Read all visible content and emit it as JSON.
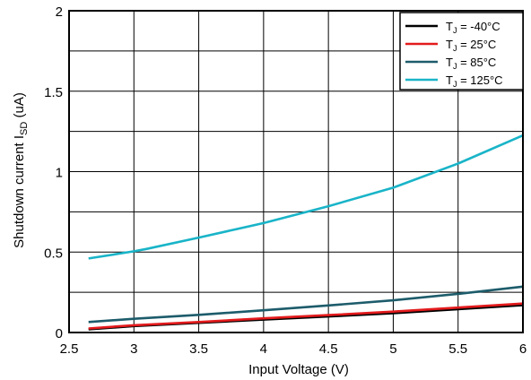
{
  "chart_data": {
    "type": "line",
    "title": "",
    "xlabel": "Input Voltage (V)",
    "ylabel": "Shutdown current I",
    "ylabel_sub": "SD",
    "ylabel_unit": " (uA)",
    "xlim": [
      2.5,
      6
    ],
    "ylim": [
      0,
      2
    ],
    "xticks": [
      2.5,
      3,
      3.5,
      4,
      4.5,
      5,
      5.5,
      6
    ],
    "xtick_labels": [
      "2.5",
      "3",
      "3.5",
      "4",
      "4.5",
      "5",
      "5.5",
      "6"
    ],
    "yticks": [
      0,
      0.5,
      1,
      1.5,
      2
    ],
    "ytick_labels": [
      "0",
      "0.5",
      "1",
      "1.5",
      "2"
    ],
    "minor_grid_y": 0.25,
    "grid": true,
    "legend_position": "top-right",
    "series": [
      {
        "name_prefix": "T",
        "name_sub": "J",
        "name_suffix": " = -40°C",
        "color": "#000000",
        "x": [
          2.65,
          3,
          3.5,
          4,
          4.5,
          5,
          5.5,
          6
        ],
        "y": [
          0.02,
          0.04,
          0.06,
          0.08,
          0.1,
          0.12,
          0.145,
          0.17
        ]
      },
      {
        "name_prefix": "T",
        "name_sub": "J",
        "name_suffix": " =  25°C",
        "color": "#e31a1c",
        "x": [
          2.65,
          3,
          3.5,
          4,
          4.5,
          5,
          5.5,
          6
        ],
        "y": [
          0.025,
          0.045,
          0.065,
          0.088,
          0.108,
          0.13,
          0.155,
          0.18
        ]
      },
      {
        "name_prefix": "T",
        "name_sub": "J",
        "name_suffix": " =  85°C",
        "color": "#1d5c6b",
        "x": [
          2.65,
          3,
          3.5,
          4,
          4.5,
          5,
          5.5,
          6
        ],
        "y": [
          0.065,
          0.085,
          0.11,
          0.138,
          0.168,
          0.2,
          0.24,
          0.285
        ]
      },
      {
        "name_prefix": "T",
        "name_sub": "J",
        "name_suffix": " = 125°C",
        "color": "#19b4c8",
        "x": [
          2.65,
          3,
          3.1,
          3.5,
          4,
          4.5,
          5,
          5.5,
          6
        ],
        "y": [
          0.46,
          0.505,
          0.52,
          0.59,
          0.68,
          0.785,
          0.9,
          1.05,
          1.225
        ]
      }
    ]
  }
}
